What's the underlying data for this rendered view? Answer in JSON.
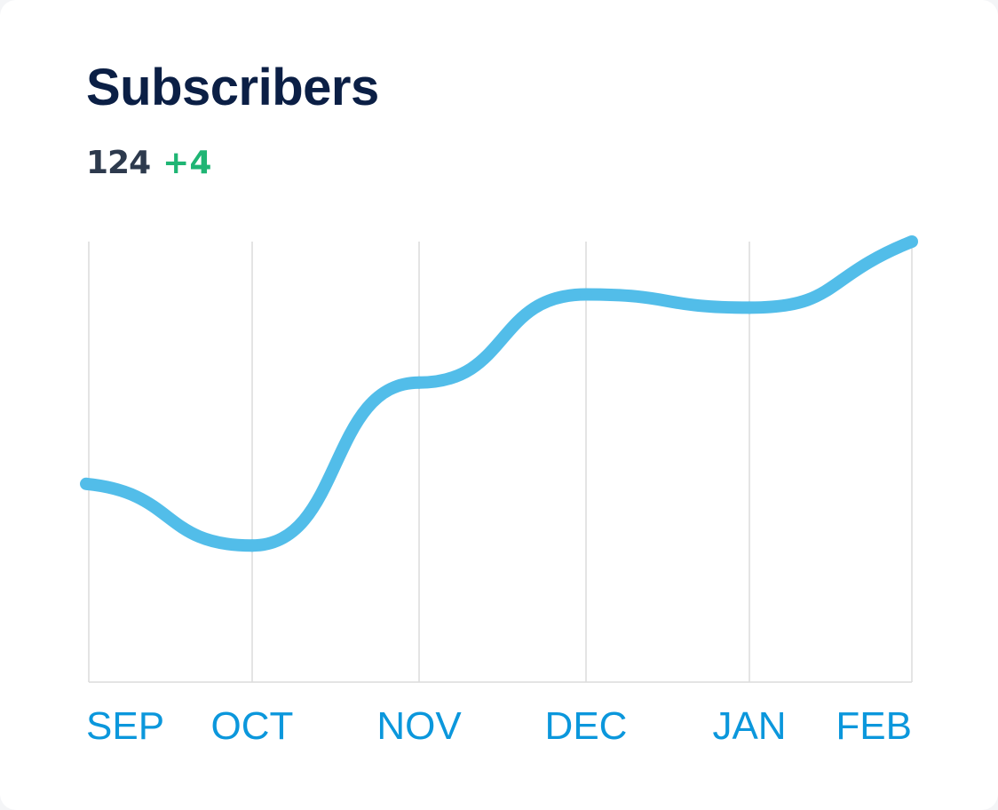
{
  "title": "Subscribers",
  "stats": {
    "count": "124",
    "delta": "+4"
  },
  "colors": {
    "line": "#52bde9",
    "title": "#0b1f45",
    "count": "#2d3a4d",
    "delta": "#1fb574",
    "axis_label": "#0b97dc",
    "grid": "#dcdcdc"
  },
  "chart_data": {
    "type": "line",
    "categories": [
      "SEP",
      "OCT",
      "NOV",
      "DEC",
      "JAN",
      "FEB"
    ],
    "series": [
      {
        "values": [
          45,
          31,
          68,
          88,
          85,
          100
        ]
      }
    ],
    "ylim": [
      0,
      100
    ],
    "grid": "vertical",
    "y_axis_labels": false,
    "smooth": true
  }
}
